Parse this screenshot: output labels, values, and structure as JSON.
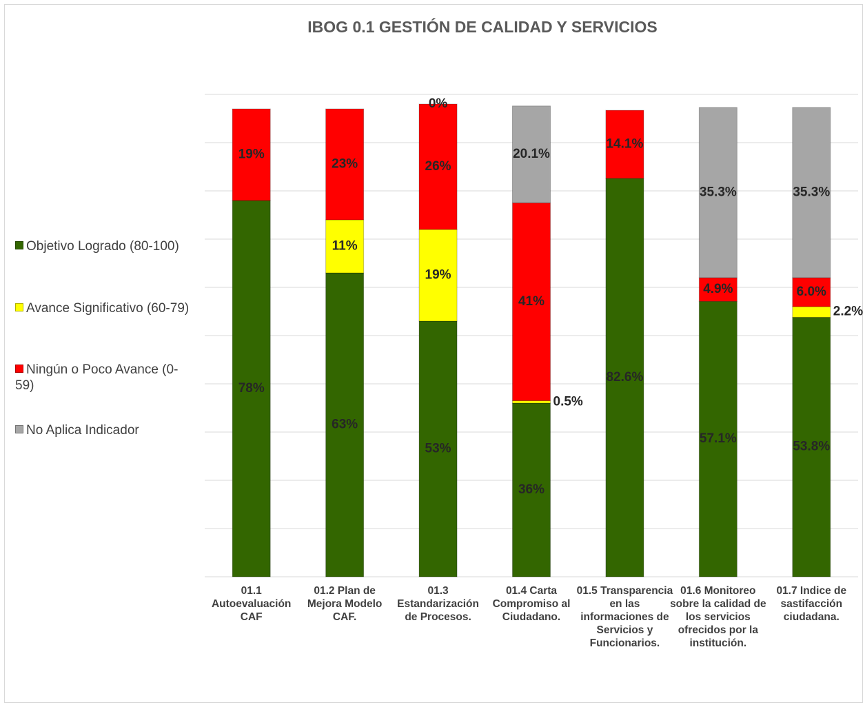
{
  "chart_data": {
    "type": "stacked_bar",
    "title": "IBOG 0.1 GESTIÓN DE CALIDAD  Y SERVICIOS",
    "categories": [
      "01.1 Autoevaluación CAF",
      "01.2 Plan de Mejora Modelo CAF.",
      "01.3 Estandarización de Procesos.",
      "01.4 Carta Compromiso al Ciudadano.",
      "01.5 Transparencia en las informaciones de Servicios y Funcionarios.",
      "01.6 Monitoreo sobre la calidad de los servicios ofrecidos por la institución.",
      "01.7 Indice de sastifacción ciudadana."
    ],
    "series": [
      {
        "name": "Objetivo Logrado (80-100)",
        "color": "#336600",
        "values": [
          78,
          63,
          53,
          36,
          82.6,
          57.1,
          53.8
        ],
        "value_labels": [
          "78%",
          "63%",
          "53%",
          "36%",
          "82.6%",
          "57.1%",
          "53.8%"
        ]
      },
      {
        "name": "Avance Significativo (60-79)",
        "color": "#ffff00",
        "values": [
          null,
          11,
          19,
          0.5,
          null,
          null,
          2.2
        ],
        "value_labels": [
          null,
          "11%",
          "19%",
          "0.5%",
          null,
          null,
          "2.2%"
        ]
      },
      {
        "name": "Ningún o Poco Avance (0-59)",
        "color": "#ff0000",
        "values": [
          19,
          23,
          26,
          41,
          14.1,
          4.9,
          6.0
        ],
        "value_labels": [
          "19%",
          "23%",
          "26%",
          "41%",
          "14.1%",
          "4.9%",
          "6.0%"
        ]
      },
      {
        "name": "No Aplica Indicador",
        "color": "#a6a6a6",
        "values": [
          null,
          null,
          0,
          20.1,
          null,
          35.3,
          35.3
        ],
        "value_labels": [
          null,
          null,
          "0%",
          "20.1%",
          null,
          "35.3%",
          "35.3%"
        ]
      }
    ],
    "ylim": [
      0,
      100
    ],
    "yticks": [
      0,
      10,
      20,
      30,
      40,
      50,
      60,
      70,
      80,
      90,
      100
    ],
    "grid": true,
    "legend": "left"
  }
}
